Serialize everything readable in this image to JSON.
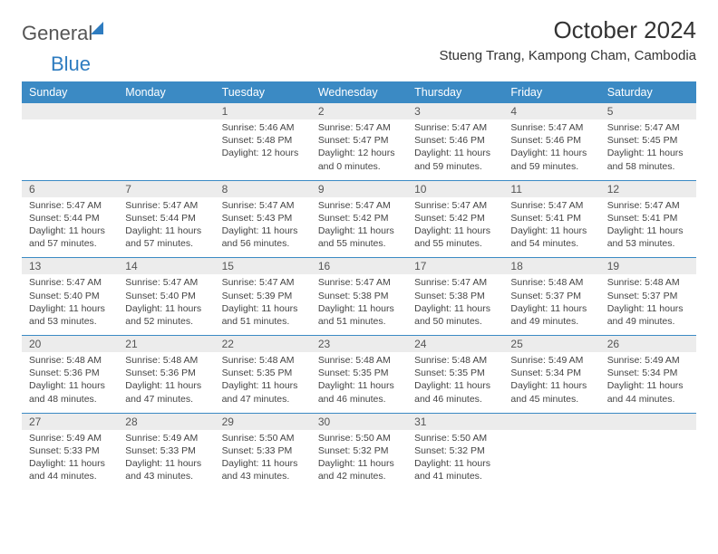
{
  "brand": {
    "word1": "General",
    "word2": "Blue"
  },
  "heading": {
    "month": "October 2024",
    "location": "Stueng Trang, Kampong Cham, Cambodia"
  },
  "dayHeaders": [
    "Sunday",
    "Monday",
    "Tuesday",
    "Wednesday",
    "Thursday",
    "Friday",
    "Saturday"
  ],
  "colors": {
    "headerBar": "#3b8ac4",
    "rowDivider": "#3b8ac4",
    "dayNumBg": "#ececec",
    "brandAccent": "#2e7cc0",
    "pageBg": "#ffffff",
    "text": "#333333"
  },
  "typography": {
    "headerFontSize": 12.5,
    "dayNumFontSize": 12,
    "cellFontSize": 10.5,
    "titleFontSize": 26,
    "locFontSize": 15
  },
  "layout": {
    "cols": 7,
    "firstDayOffset": 2,
    "daysInMonth": 31
  },
  "days": [
    {
      "n": "1",
      "sunrise": "Sunrise: 5:46 AM",
      "sunset": "Sunset: 5:48 PM",
      "daylight": "Daylight: 12 hours"
    },
    {
      "n": "2",
      "sunrise": "Sunrise: 5:47 AM",
      "sunset": "Sunset: 5:47 PM",
      "daylight": "Daylight: 12 hours and 0 minutes."
    },
    {
      "n": "3",
      "sunrise": "Sunrise: 5:47 AM",
      "sunset": "Sunset: 5:46 PM",
      "daylight": "Daylight: 11 hours and 59 minutes."
    },
    {
      "n": "4",
      "sunrise": "Sunrise: 5:47 AM",
      "sunset": "Sunset: 5:46 PM",
      "daylight": "Daylight: 11 hours and 59 minutes."
    },
    {
      "n": "5",
      "sunrise": "Sunrise: 5:47 AM",
      "sunset": "Sunset: 5:45 PM",
      "daylight": "Daylight: 11 hours and 58 minutes."
    },
    {
      "n": "6",
      "sunrise": "Sunrise: 5:47 AM",
      "sunset": "Sunset: 5:44 PM",
      "daylight": "Daylight: 11 hours and 57 minutes."
    },
    {
      "n": "7",
      "sunrise": "Sunrise: 5:47 AM",
      "sunset": "Sunset: 5:44 PM",
      "daylight": "Daylight: 11 hours and 57 minutes."
    },
    {
      "n": "8",
      "sunrise": "Sunrise: 5:47 AM",
      "sunset": "Sunset: 5:43 PM",
      "daylight": "Daylight: 11 hours and 56 minutes."
    },
    {
      "n": "9",
      "sunrise": "Sunrise: 5:47 AM",
      "sunset": "Sunset: 5:42 PM",
      "daylight": "Daylight: 11 hours and 55 minutes."
    },
    {
      "n": "10",
      "sunrise": "Sunrise: 5:47 AM",
      "sunset": "Sunset: 5:42 PM",
      "daylight": "Daylight: 11 hours and 55 minutes."
    },
    {
      "n": "11",
      "sunrise": "Sunrise: 5:47 AM",
      "sunset": "Sunset: 5:41 PM",
      "daylight": "Daylight: 11 hours and 54 minutes."
    },
    {
      "n": "12",
      "sunrise": "Sunrise: 5:47 AM",
      "sunset": "Sunset: 5:41 PM",
      "daylight": "Daylight: 11 hours and 53 minutes."
    },
    {
      "n": "13",
      "sunrise": "Sunrise: 5:47 AM",
      "sunset": "Sunset: 5:40 PM",
      "daylight": "Daylight: 11 hours and 53 minutes."
    },
    {
      "n": "14",
      "sunrise": "Sunrise: 5:47 AM",
      "sunset": "Sunset: 5:40 PM",
      "daylight": "Daylight: 11 hours and 52 minutes."
    },
    {
      "n": "15",
      "sunrise": "Sunrise: 5:47 AM",
      "sunset": "Sunset: 5:39 PM",
      "daylight": "Daylight: 11 hours and 51 minutes."
    },
    {
      "n": "16",
      "sunrise": "Sunrise: 5:47 AM",
      "sunset": "Sunset: 5:38 PM",
      "daylight": "Daylight: 11 hours and 51 minutes."
    },
    {
      "n": "17",
      "sunrise": "Sunrise: 5:47 AM",
      "sunset": "Sunset: 5:38 PM",
      "daylight": "Daylight: 11 hours and 50 minutes."
    },
    {
      "n": "18",
      "sunrise": "Sunrise: 5:48 AM",
      "sunset": "Sunset: 5:37 PM",
      "daylight": "Daylight: 11 hours and 49 minutes."
    },
    {
      "n": "19",
      "sunrise": "Sunrise: 5:48 AM",
      "sunset": "Sunset: 5:37 PM",
      "daylight": "Daylight: 11 hours and 49 minutes."
    },
    {
      "n": "20",
      "sunrise": "Sunrise: 5:48 AM",
      "sunset": "Sunset: 5:36 PM",
      "daylight": "Daylight: 11 hours and 48 minutes."
    },
    {
      "n": "21",
      "sunrise": "Sunrise: 5:48 AM",
      "sunset": "Sunset: 5:36 PM",
      "daylight": "Daylight: 11 hours and 47 minutes."
    },
    {
      "n": "22",
      "sunrise": "Sunrise: 5:48 AM",
      "sunset": "Sunset: 5:35 PM",
      "daylight": "Daylight: 11 hours and 47 minutes."
    },
    {
      "n": "23",
      "sunrise": "Sunrise: 5:48 AM",
      "sunset": "Sunset: 5:35 PM",
      "daylight": "Daylight: 11 hours and 46 minutes."
    },
    {
      "n": "24",
      "sunrise": "Sunrise: 5:48 AM",
      "sunset": "Sunset: 5:35 PM",
      "daylight": "Daylight: 11 hours and 46 minutes."
    },
    {
      "n": "25",
      "sunrise": "Sunrise: 5:49 AM",
      "sunset": "Sunset: 5:34 PM",
      "daylight": "Daylight: 11 hours and 45 minutes."
    },
    {
      "n": "26",
      "sunrise": "Sunrise: 5:49 AM",
      "sunset": "Sunset: 5:34 PM",
      "daylight": "Daylight: 11 hours and 44 minutes."
    },
    {
      "n": "27",
      "sunrise": "Sunrise: 5:49 AM",
      "sunset": "Sunset: 5:33 PM",
      "daylight": "Daylight: 11 hours and 44 minutes."
    },
    {
      "n": "28",
      "sunrise": "Sunrise: 5:49 AM",
      "sunset": "Sunset: 5:33 PM",
      "daylight": "Daylight: 11 hours and 43 minutes."
    },
    {
      "n": "29",
      "sunrise": "Sunrise: 5:50 AM",
      "sunset": "Sunset: 5:33 PM",
      "daylight": "Daylight: 11 hours and 43 minutes."
    },
    {
      "n": "30",
      "sunrise": "Sunrise: 5:50 AM",
      "sunset": "Sunset: 5:32 PM",
      "daylight": "Daylight: 11 hours and 42 minutes."
    },
    {
      "n": "31",
      "sunrise": "Sunrise: 5:50 AM",
      "sunset": "Sunset: 5:32 PM",
      "daylight": "Daylight: 11 hours and 41 minutes."
    }
  ]
}
